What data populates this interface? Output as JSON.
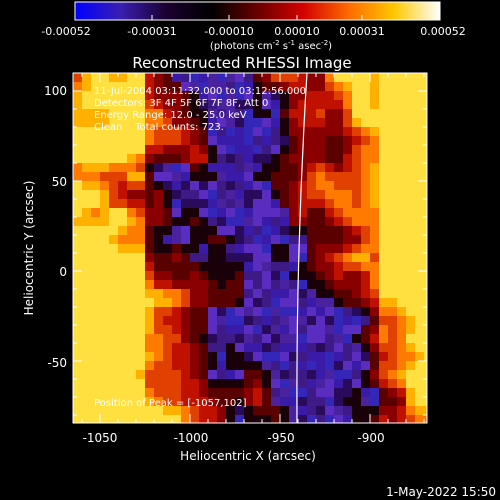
{
  "colorbar": {
    "ticks": [
      "-0.00052",
      "-0.00031",
      "-0.00010",
      "0.00010",
      "0.00031",
      "0.00052"
    ],
    "unit_prefix": "(photons cm",
    "unit_exp1": "-2",
    "unit_mid": " s",
    "unit_exp2": "-1",
    "unit_mid2": " asec",
    "unit_exp3": "-2",
    "unit_suffix": ")",
    "stops": [
      "#0000ff",
      "#3a1fb0",
      "#1a0030",
      "#000000",
      "#6a0000",
      "#d40000",
      "#ff6a00",
      "#ffc800",
      "#ffffff"
    ]
  },
  "title": "Reconstructed RHESSI Image",
  "info": {
    "line1": "11-Jul-2004 03:11:32.000 to 03:12:56.000",
    "line2": "Detectors: 3F 4F 5F 6F 7F 8F, Att 0",
    "line3": "Energy Range: 12.0 - 25.0 keV",
    "line4": "Clean    Total counts: 723.",
    "peak": "Position of Peak = [-1057,102]"
  },
  "axes": {
    "xlabel": "Heliocentric X (arcsec)",
    "ylabel": "Heliocentric Y (arcsec)",
    "xticks": [
      "-1050",
      "-1000",
      "-950",
      "-900"
    ],
    "yticks": [
      "100",
      "50",
      "0",
      "-50"
    ]
  },
  "footer": {
    "date": "1-May-2022 15:50"
  },
  "palette": {
    "cold": [
      "#2a0a5a",
      "#3d1a86",
      "#4a22a0",
      "#5a2cc0",
      "#3a1aa8",
      "#3326b8"
    ],
    "warm": [
      "#5a0000",
      "#8a0000",
      "#c01000",
      "#e04000",
      "#ff7a00",
      "#ffb000",
      "#ffe040"
    ]
  }
}
